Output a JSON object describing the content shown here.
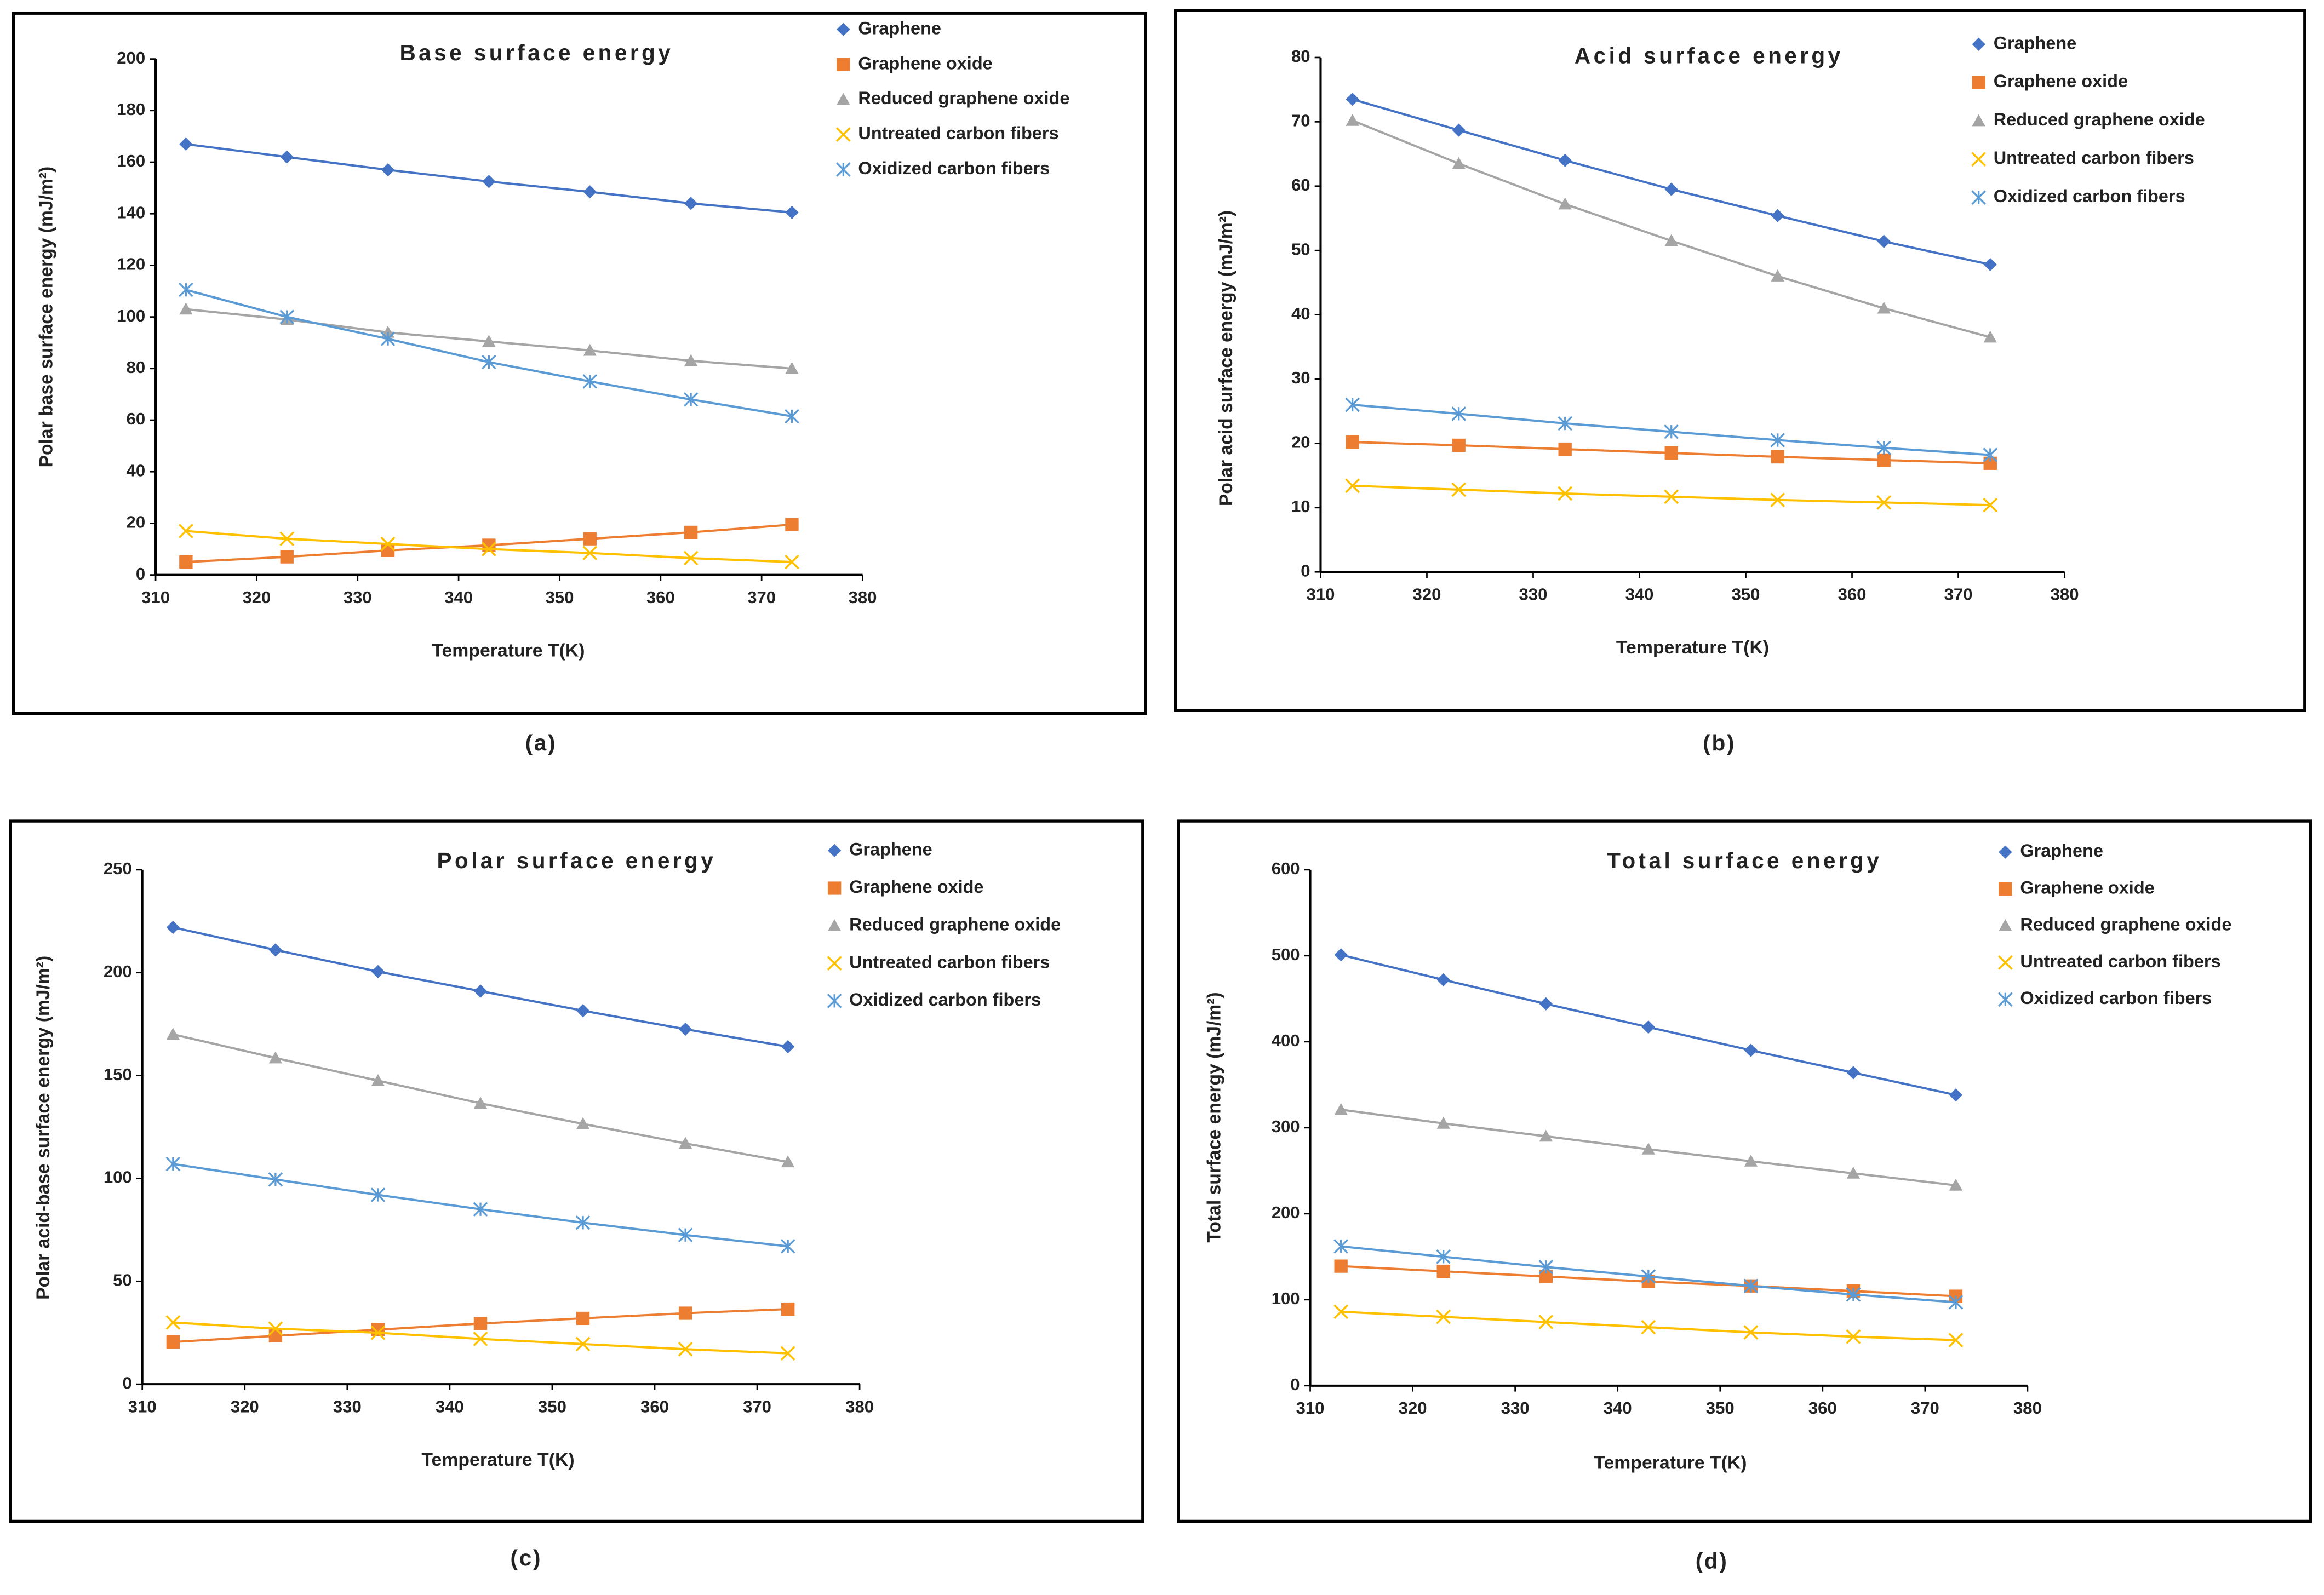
{
  "chart_data": [
    {
      "type": "line",
      "title": "Base surface energy",
      "caption": "(a)",
      "x_label": "Temperature T(K)",
      "y_label": "Polar base surface energy (mJ/m²)",
      "x": [
        313,
        323,
        333,
        343,
        353,
        363,
        373
      ],
      "xlim": [
        310,
        380
      ],
      "xticks": [
        310,
        320,
        330,
        340,
        350,
        360,
        370,
        380
      ],
      "ylim": [
        0,
        200
      ],
      "yticks": [
        0,
        20,
        40,
        60,
        80,
        100,
        120,
        140,
        160,
        180,
        200
      ],
      "series": [
        {
          "name": "Graphene",
          "color": "#4472c4",
          "marker": "diamond",
          "values": [
            167,
            162,
            157,
            152.5,
            148.5,
            144,
            140.5
          ]
        },
        {
          "name": "Graphene oxide",
          "color": "#ed7d31",
          "marker": "square",
          "values": [
            5,
            7,
            9.5,
            11.5,
            14,
            16.5,
            19.5
          ]
        },
        {
          "name": "Reduced graphene oxide",
          "color": "#a5a5a5",
          "marker": "triangle",
          "values": [
            103,
            99,
            94,
            90.5,
            87,
            83,
            80
          ]
        },
        {
          "name": "Untreated carbon fibers",
          "color": "#ffc000",
          "marker": "x",
          "values": [
            17,
            14,
            12,
            10,
            8.5,
            6.5,
            5
          ]
        },
        {
          "name": "Oxidized carbon fibers",
          "color": "#5b9bd5",
          "marker": "star",
          "values": [
            110.5,
            100,
            91.5,
            82.5,
            75,
            68,
            61.5
          ]
        }
      ]
    },
    {
      "type": "line",
      "title": "Acid surface energy",
      "caption": "(b)",
      "x_label": "Temperature T(K)",
      "y_label": "Polar acid surface energy (mJ/m²)",
      "x": [
        313,
        323,
        333,
        343,
        353,
        363,
        373
      ],
      "xlim": [
        310,
        380
      ],
      "xticks": [
        310,
        320,
        330,
        340,
        350,
        360,
        370,
        380
      ],
      "ylim": [
        0,
        80
      ],
      "yticks": [
        0,
        10,
        20,
        30,
        40,
        50,
        60,
        70,
        80
      ],
      "series": [
        {
          "name": "Graphene",
          "color": "#4472c4",
          "marker": "diamond",
          "values": [
            73.5,
            68.7,
            64,
            59.5,
            55.4,
            51.4,
            47.8
          ]
        },
        {
          "name": "Graphene oxide",
          "color": "#ed7d31",
          "marker": "square",
          "values": [
            20.2,
            19.7,
            19.1,
            18.5,
            17.9,
            17.4,
            16.9
          ]
        },
        {
          "name": "Reduced graphene oxide",
          "color": "#a5a5a5",
          "marker": "triangle",
          "values": [
            70.2,
            63.5,
            57.2,
            51.5,
            46,
            41,
            36.5
          ]
        },
        {
          "name": "Untreated carbon fibers",
          "color": "#ffc000",
          "marker": "x",
          "values": [
            13.4,
            12.8,
            12.2,
            11.7,
            11.2,
            10.8,
            10.4
          ]
        },
        {
          "name": "Oxidized carbon fibers",
          "color": "#5b9bd5",
          "marker": "star",
          "values": [
            26,
            24.6,
            23.1,
            21.8,
            20.5,
            19.3,
            18.2
          ]
        }
      ]
    },
    {
      "type": "line",
      "title": "Polar surface energy",
      "caption": "(c)",
      "x_label": "Temperature T(K)",
      "y_label": "Polar acid-base surface energy (mJ/m²)",
      "x": [
        313,
        323,
        333,
        343,
        353,
        363,
        373
      ],
      "xlim": [
        310,
        380
      ],
      "xticks": [
        310,
        320,
        330,
        340,
        350,
        360,
        370,
        380
      ],
      "ylim": [
        0,
        250
      ],
      "yticks": [
        0,
        50,
        100,
        150,
        200,
        250
      ],
      "series": [
        {
          "name": "Graphene",
          "color": "#4472c4",
          "marker": "diamond",
          "values": [
            222,
            211,
            200.5,
            191,
            181.5,
            172.5,
            164
          ]
        },
        {
          "name": "Graphene oxide",
          "color": "#ed7d31",
          "marker": "square",
          "values": [
            20.5,
            23.5,
            26.5,
            29.5,
            32,
            34.5,
            36.5
          ]
        },
        {
          "name": "Reduced graphene oxide",
          "color": "#a5a5a5",
          "marker": "triangle",
          "values": [
            170,
            158.5,
            147.5,
            136.5,
            126.5,
            117,
            108
          ]
        },
        {
          "name": "Untreated carbon fibers",
          "color": "#ffc000",
          "marker": "x",
          "values": [
            30,
            27,
            25,
            22,
            19.5,
            17,
            15
          ]
        },
        {
          "name": "Oxidized carbon fibers",
          "color": "#5b9bd5",
          "marker": "star",
          "values": [
            107,
            99.5,
            92,
            85,
            78.5,
            72.5,
            67
          ]
        }
      ]
    },
    {
      "type": "line",
      "title": "Total surface energy",
      "caption": "(d)",
      "x_label": "Temperature T(K)",
      "y_label": "Total surface energy (mJ/m²)",
      "x": [
        313,
        323,
        333,
        343,
        353,
        363,
        373
      ],
      "xlim": [
        310,
        380
      ],
      "xticks": [
        310,
        320,
        330,
        340,
        350,
        360,
        370,
        380
      ],
      "ylim": [
        0,
        600
      ],
      "yticks": [
        0,
        100,
        200,
        300,
        400,
        500,
        600
      ],
      "series": [
        {
          "name": "Graphene",
          "color": "#4472c4",
          "marker": "diamond",
          "values": [
            501,
            472,
            444,
            417,
            390,
            364,
            338
          ]
        },
        {
          "name": "Graphene oxide",
          "color": "#ed7d31",
          "marker": "square",
          "values": [
            139,
            133,
            127,
            121,
            116,
            110,
            104
          ]
        },
        {
          "name": "Reduced graphene oxide",
          "color": "#a5a5a5",
          "marker": "triangle",
          "values": [
            321,
            305,
            290,
            275,
            261,
            247,
            233
          ]
        },
        {
          "name": "Untreated carbon fibers",
          "color": "#ffc000",
          "marker": "x",
          "values": [
            86,
            80,
            74,
            68,
            62,
            57,
            53
          ]
        },
        {
          "name": "Oxidized carbon fibers",
          "color": "#5b9bd5",
          "marker": "star",
          "values": [
            162,
            150,
            138,
            127,
            116,
            106,
            97
          ]
        }
      ]
    }
  ]
}
